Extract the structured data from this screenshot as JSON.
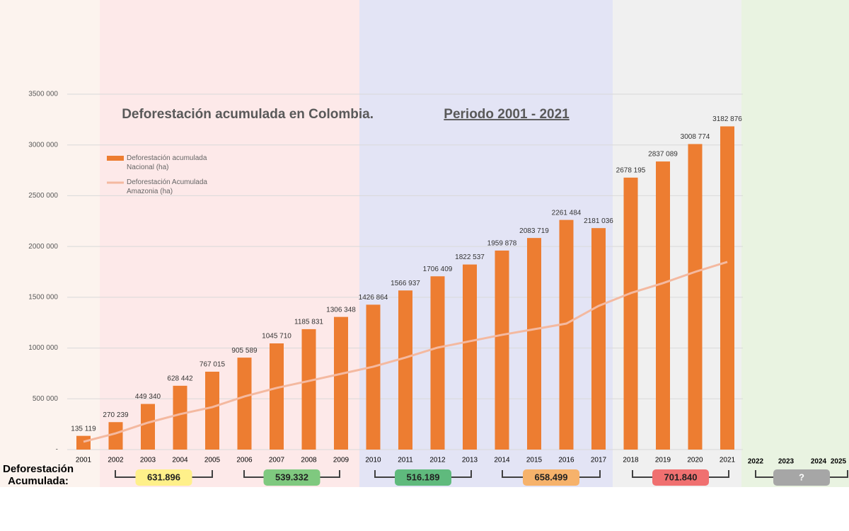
{
  "chart_data": {
    "type": "bar",
    "title": "Deforestación acumulada en Colombia.",
    "subtitle": "Periodo 2001 - 2021",
    "categories": [
      "2001",
      "2002",
      "2003",
      "2004",
      "2005",
      "2006",
      "2007",
      "2008",
      "2009",
      "2010",
      "2011",
      "2012",
      "2013",
      "2014",
      "2015",
      "2016",
      "2017",
      "2018",
      "2019",
      "2020",
      "2021"
    ],
    "series": [
      {
        "name": "Deforestación acumulada Nacional (ha)",
        "color": "#ed7d31",
        "values": [
          135119,
          270239,
          449340,
          628442,
          767015,
          905589,
          1045710,
          1185831,
          1306348,
          1426864,
          1566937,
          1706409,
          1822537,
          1959878,
          2083719,
          2261484,
          2181036,
          2678195,
          2837089,
          3008774,
          3182876
        ],
        "value_labels": [
          "135 119",
          "270 239",
          "449 340",
          "628 442",
          "767 015",
          "905 589",
          "1045 710",
          "1185 831",
          "1306 348",
          "1426 864",
          "1566 937",
          "1706 409",
          "1822 537",
          "1959 878",
          "2083 719",
          "2261 484",
          "2181 036",
          "2678 195",
          "2837 089",
          "3008 774",
          "3182 876"
        ]
      },
      {
        "name": "Deforestación Acumulada Amazonia (ha)",
        "color": "#f4b9a0",
        "type": "line",
        "values": [
          77000,
          160000,
          265000,
          349000,
          418000,
          523000,
          607000,
          676000,
          746000,
          816000,
          906000,
          1004000,
          1067000,
          1130000,
          1185000,
          1241000,
          1415000,
          1541000,
          1639000,
          1750000,
          1848000
        ]
      }
    ],
    "ylim": [
      0,
      3500000
    ],
    "yticks": [
      {
        "value": 0,
        "label": "-"
      },
      {
        "value": 500000,
        "label": "500 000"
      },
      {
        "value": 1000000,
        "label": "1000 000"
      },
      {
        "value": 1500000,
        "label": "1500 000"
      },
      {
        "value": 2000000,
        "label": "2000 000"
      },
      {
        "value": 2500000,
        "label": "2500 000"
      },
      {
        "value": 3000000,
        "label": "3000 000"
      },
      {
        "value": 3500000,
        "label": "3500 000"
      }
    ],
    "grid": true,
    "extra_years": [
      "2022",
      "2023",
      "2024",
      "2025"
    ],
    "annotations": {
      "label": "Deforestación Acumulada:",
      "periods": [
        {
          "text": "631.896",
          "color": "#fff08a"
        },
        {
          "text": "539.332",
          "color": "#7fc97f"
        },
        {
          "text": "516.189",
          "color": "#5fba7d"
        },
        {
          "text": "658.499",
          "color": "#f6b26b"
        },
        {
          "text": "701.840",
          "color": "#f07070"
        },
        {
          "text": "?",
          "color": "#a6a6a6"
        }
      ]
    }
  }
}
